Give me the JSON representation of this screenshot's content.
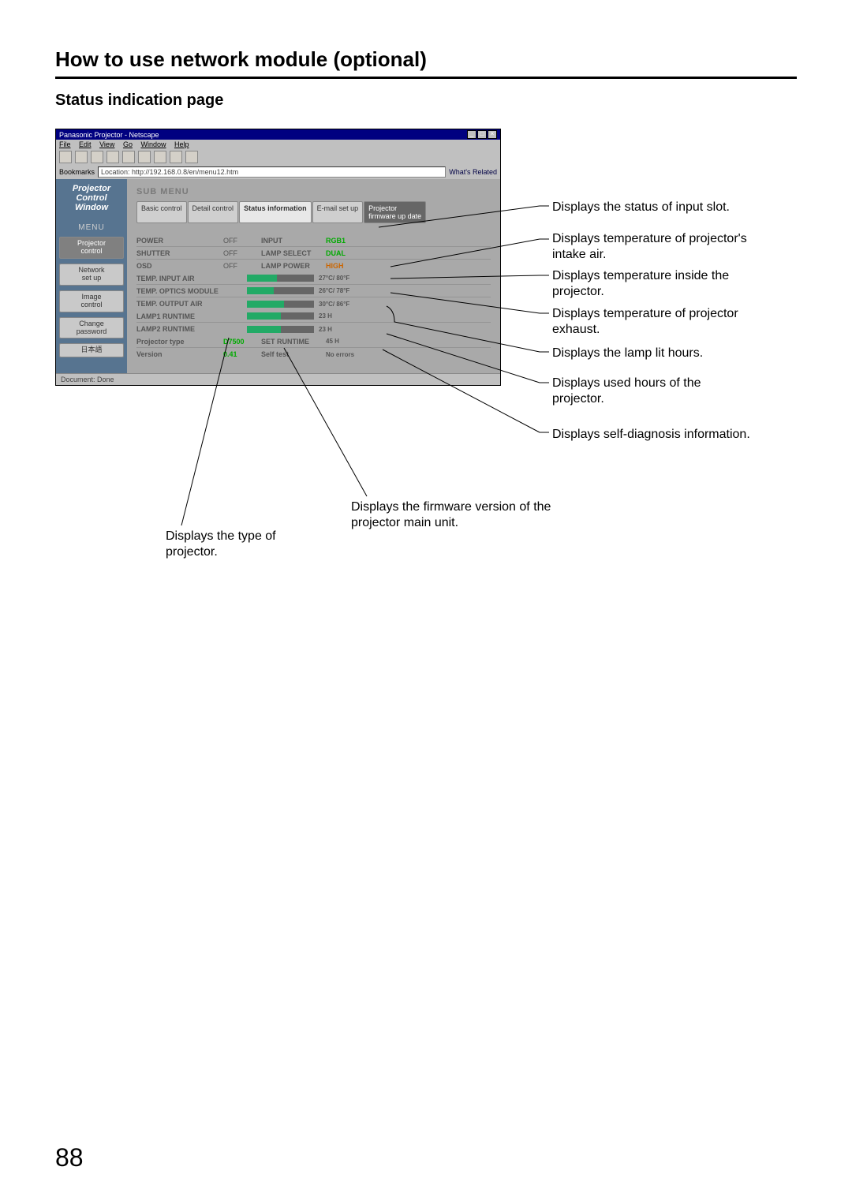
{
  "page": {
    "heading": "How to use network module (optional)",
    "subheading": "Status indication page",
    "page_number": "88"
  },
  "browser": {
    "title": "Panasonic Projector - Netscape",
    "menubar": {
      "file": "File",
      "edit": "Edit",
      "view": "View",
      "go": "Go",
      "window": "Window",
      "help": "Help"
    },
    "location_label": "Bookmarks",
    "location_url": "Location: http://192.168.0.8/en/menu12.htm",
    "related": "What's Related",
    "statusbar": "Document: Done"
  },
  "sidebar": {
    "logo_l1": "Projector",
    "logo_l2": "Control",
    "logo_l3": "Window",
    "menu_label": "MENU",
    "items": [
      {
        "label": "Projector\ncontrol",
        "active": true
      },
      {
        "label": "Network\nset up",
        "active": false
      },
      {
        "label": "Image\ncontrol",
        "active": false
      },
      {
        "label": "Change\npassword",
        "active": false
      },
      {
        "label": "日本語",
        "active": false
      }
    ]
  },
  "submenu": {
    "label": "SUB MENU",
    "tabs": [
      {
        "label": "Basic control"
      },
      {
        "label": "Detail control"
      },
      {
        "label": "Status information",
        "active": true
      },
      {
        "label": "E-mail set up"
      },
      {
        "label": "Projector\nfirmware up date",
        "dark": true
      }
    ]
  },
  "status": {
    "rows": [
      {
        "l1": "POWER",
        "v1": "OFF",
        "l2": "INPUT",
        "v2": "RGB1",
        "v2class": "green"
      },
      {
        "l1": "SHUTTER",
        "v1": "OFF",
        "l2": "LAMP SELECT",
        "v2": "DUAL",
        "v2class": "green"
      },
      {
        "l1": "OSD",
        "v1": "OFF",
        "l2": "LAMP POWER",
        "v2": "HIGH",
        "v2class": "orange"
      }
    ],
    "temps": [
      {
        "label": "TEMP. INPUT AIR",
        "pct": 45,
        "text": "27°C/ 80°F",
        "color": "#2a6"
      },
      {
        "label": "TEMP. OPTICS MODULE",
        "pct": 40,
        "text": "26°C/ 78°F",
        "color": "#2a6"
      },
      {
        "label": "TEMP. OUTPUT AIR",
        "pct": 55,
        "text": "30°C/ 86°F",
        "color": "#2a6"
      }
    ],
    "runtimes": [
      {
        "label": "LAMP1 RUNTIME",
        "pct": 50,
        "text": "23 H"
      },
      {
        "label": "LAMP2 RUNTIME",
        "pct": 50,
        "text": "23 H"
      }
    ],
    "footer": {
      "proj_type_label": "Projector type",
      "proj_type": "D7500",
      "set_runtime_label": "SET RUNTIME",
      "set_runtime": "45 H",
      "version_label": "Version",
      "version": "0.41",
      "selftest_label": "Self test",
      "selftest": "No errors",
      "selftest_class": "orange"
    }
  },
  "callouts": {
    "c1": "Displays the status of input slot.",
    "c2": "Displays temperature of projector's intake air.",
    "c3": "Displays temperature inside the projector.",
    "c4": "Displays temperature of projector exhaust.",
    "c5": "Displays the lamp lit hours.",
    "c6": "Displays used hours of the projector.",
    "c7": "Displays self-diagnosis information.",
    "c8": "Displays the firmware version of the projector main unit.",
    "c9": "Displays the type of projector."
  },
  "colors": {
    "titlebar": "#000080",
    "sidebar": "#577490",
    "mainbg": "#a9a9a9",
    "bar_bg": "#666666",
    "bar_fill": "#22aa66"
  }
}
